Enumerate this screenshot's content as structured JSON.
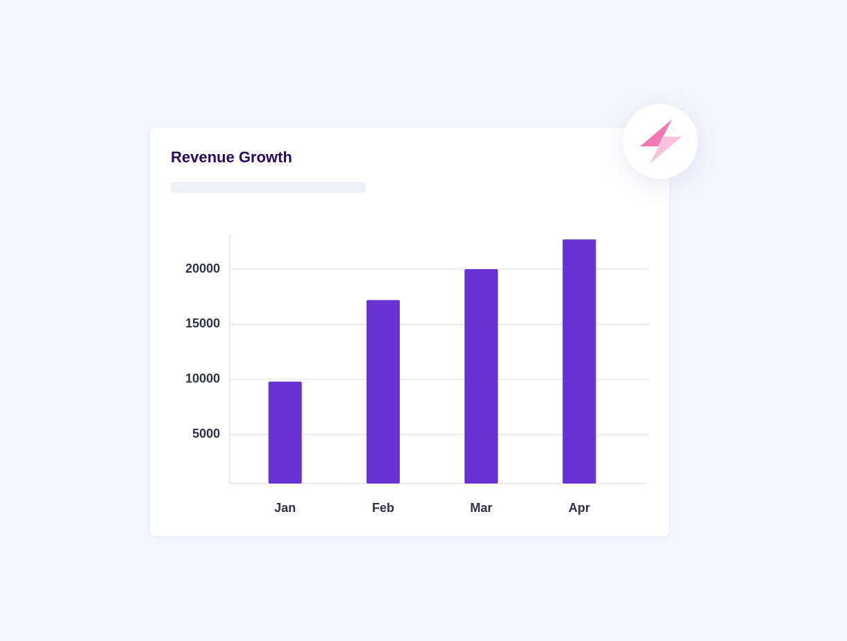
{
  "chart_data": {
    "type": "bar",
    "title": "Revenue Growth",
    "categories": [
      "Jan",
      "Feb",
      "Mar",
      "Apr"
    ],
    "values": [
      9800,
      17200,
      20000,
      22700
    ],
    "color": "#6933d3",
    "ylim": [
      550,
      23150
    ],
    "yticks": [
      5000,
      10000,
      15000,
      20000
    ],
    "grid": true
  }
}
